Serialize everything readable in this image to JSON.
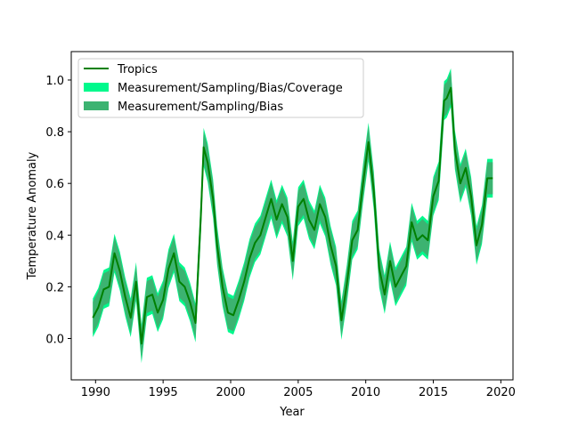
{
  "chart_data": {
    "type": "line",
    "title": "",
    "xlabel": "Year",
    "ylabel": "Temperature Anomaly",
    "xlim": [
      1988.2,
      2020.9
    ],
    "ylim": [
      -0.16,
      1.11
    ],
    "xticks": [
      1990,
      1995,
      2000,
      2005,
      2010,
      2015,
      2020
    ],
    "yticks": [
      0.0,
      0.2,
      0.4,
      0.6,
      0.8,
      1.0
    ],
    "ytick_labels": [
      "0.0",
      "0.2",
      "0.4",
      "0.6",
      "0.8",
      "1.0"
    ],
    "grid": false,
    "legend_position": "upper-left",
    "legend": [
      {
        "label": "Tropics",
        "kind": "line",
        "color": "#008000"
      },
      {
        "label": "Measurement/Sampling/Bias/Coverage",
        "kind": "patch",
        "color": "#00f98c"
      },
      {
        "label": "Measurement/Sampling/Bias",
        "kind": "patch",
        "color": "#3cb371"
      }
    ],
    "series": [
      {
        "name": "Tropics",
        "color": "#008000",
        "x": [
          1989.8,
          1990.2,
          1990.6,
          1991.0,
          1991.4,
          1991.8,
          1992.2,
          1992.6,
          1993.0,
          1993.4,
          1993.8,
          1994.2,
          1994.6,
          1995.0,
          1995.4,
          1995.8,
          1996.2,
          1996.6,
          1997.0,
          1997.4,
          1997.8,
          1998.0,
          1998.3,
          1998.7,
          1999.0,
          1999.4,
          1999.8,
          2000.2,
          2000.6,
          2001.0,
          2001.4,
          2001.8,
          2002.2,
          2002.6,
          2003.0,
          2003.4,
          2003.8,
          2004.2,
          2004.6,
          2005.0,
          2005.4,
          2005.8,
          2006.2,
          2006.6,
          2007.0,
          2007.4,
          2007.8,
          2008.2,
          2008.6,
          2009.0,
          2009.4,
          2009.8,
          2010.2,
          2010.6,
          2011.0,
          2011.4,
          2011.8,
          2012.2,
          2012.6,
          2013.0,
          2013.4,
          2013.8,
          2014.2,
          2014.6,
          2015.0,
          2015.4,
          2015.8,
          2016.0,
          2016.3,
          2016.6,
          2017.0,
          2017.4,
          2017.8,
          2018.2,
          2018.6,
          2019.0,
          2019.4
        ],
        "values": [
          0.08,
          0.12,
          0.19,
          0.2,
          0.33,
          0.26,
          0.16,
          0.08,
          0.22,
          -0.02,
          0.16,
          0.17,
          0.1,
          0.15,
          0.27,
          0.33,
          0.22,
          0.2,
          0.14,
          0.06,
          0.48,
          0.74,
          0.68,
          0.54,
          0.36,
          0.2,
          0.1,
          0.09,
          0.15,
          0.22,
          0.31,
          0.37,
          0.4,
          0.47,
          0.54,
          0.46,
          0.52,
          0.47,
          0.3,
          0.51,
          0.54,
          0.46,
          0.42,
          0.52,
          0.47,
          0.36,
          0.28,
          0.07,
          0.21,
          0.38,
          0.42,
          0.6,
          0.76,
          0.57,
          0.27,
          0.17,
          0.3,
          0.2,
          0.24,
          0.28,
          0.45,
          0.38,
          0.4,
          0.38,
          0.55,
          0.61,
          0.92,
          0.93,
          0.97,
          0.73,
          0.6,
          0.66,
          0.55,
          0.36,
          0.44,
          0.62,
          0.62
        ],
        "error_outer": 0.075,
        "error_inner": 0.062
      }
    ]
  }
}
